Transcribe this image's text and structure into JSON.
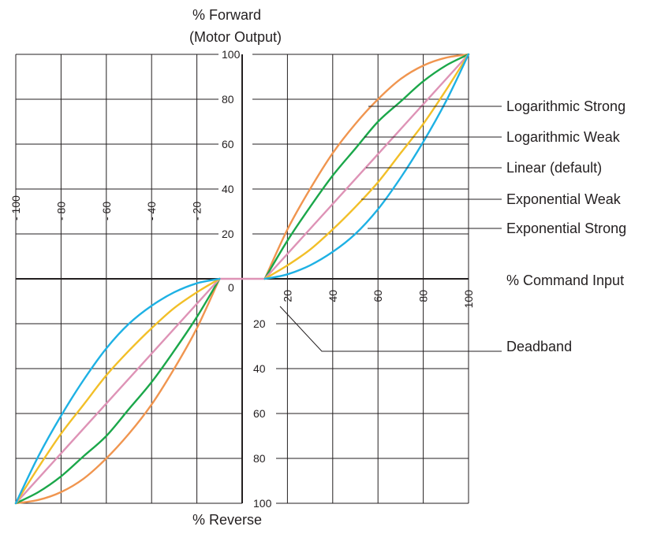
{
  "chart_data": {
    "type": "line",
    "y_title_lines": [
      "% Forward",
      "(Motor Output)"
    ],
    "x_title": "% Command Input",
    "bottom_title": "% Reverse",
    "x_range": [
      -100,
      100
    ],
    "y_range": [
      -100,
      100
    ],
    "deadband": 10,
    "x_ticks_positive": [
      "20",
      "40",
      "60",
      "80",
      "100"
    ],
    "x_ticks_negative": [
      "- 100",
      "- 80",
      "- 60",
      "- 40",
      "- 20"
    ],
    "y_ticks_positive": [
      "100",
      "80",
      "60",
      "40",
      "20"
    ],
    "y_ticks_negative": [
      "20",
      "40",
      "60",
      "80",
      "100"
    ],
    "origin_label": "0",
    "deadband_label": "Deadband",
    "series": [
      {
        "name": "Logarithmic Strong",
        "color": "#f0954f",
        "points": [
          [
            10,
            0
          ],
          [
            20,
            22
          ],
          [
            30,
            40
          ],
          [
            40,
            56
          ],
          [
            50,
            69
          ],
          [
            60,
            80
          ],
          [
            70,
            89
          ],
          [
            80,
            95
          ],
          [
            90,
            98.5
          ],
          [
            100,
            100
          ]
        ]
      },
      {
        "name": "Logarithmic Weak",
        "color": "#1ba74a",
        "points": [
          [
            10,
            0
          ],
          [
            20,
            17
          ],
          [
            30,
            32
          ],
          [
            40,
            46
          ],
          [
            50,
            58
          ],
          [
            60,
            70
          ],
          [
            70,
            79
          ],
          [
            80,
            88
          ],
          [
            90,
            95
          ],
          [
            100,
            100
          ]
        ]
      },
      {
        "name": "Linear (default)",
        "color": "#de93b6",
        "points": [
          [
            10,
            0
          ],
          [
            100,
            100
          ]
        ]
      },
      {
        "name": "Exponential Weak",
        "color": "#f2bf28",
        "points": [
          [
            10,
            0
          ],
          [
            20,
            6
          ],
          [
            30,
            13
          ],
          [
            40,
            22
          ],
          [
            50,
            32
          ],
          [
            60,
            43
          ],
          [
            70,
            56
          ],
          [
            80,
            69
          ],
          [
            90,
            84
          ],
          [
            100,
            100
          ]
        ]
      },
      {
        "name": "Exponential Strong",
        "color": "#1eb1e4",
        "points": [
          [
            10,
            0
          ],
          [
            20,
            2
          ],
          [
            30,
            6
          ],
          [
            40,
            12
          ],
          [
            50,
            20
          ],
          [
            60,
            31
          ],
          [
            70,
            45
          ],
          [
            80,
            61
          ],
          [
            90,
            79
          ],
          [
            100,
            100
          ]
        ]
      }
    ]
  }
}
